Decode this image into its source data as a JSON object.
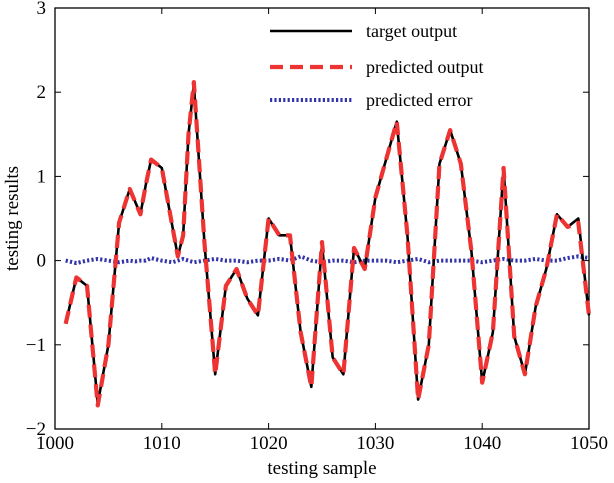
{
  "chart_data": {
    "type": "line",
    "title": "",
    "xlabel": "testing sample",
    "ylabel": "testing results",
    "xlim": [
      1000,
      1050
    ],
    "ylim": [
      -2,
      3
    ],
    "xticks": [
      1000,
      1010,
      1020,
      1030,
      1040,
      1050
    ],
    "yticks": [
      -2,
      -1,
      0,
      1,
      2,
      3
    ],
    "ytick_labels": [
      "−2",
      "−1",
      "0",
      "1",
      "2",
      "3"
    ],
    "grid": false,
    "legend_position": "top-right",
    "x": [
      1001,
      1002,
      1003,
      1004,
      1005,
      1006,
      1007,
      1007.5,
      1008,
      1008.5,
      1009,
      1010,
      1011,
      1011.5,
      1012,
      1012.5,
      1013,
      1014,
      1015,
      1016,
      1017,
      1018,
      1019,
      1020,
      1021,
      1022,
      1023,
      1024,
      1025,
      1026,
      1027,
      1028,
      1029,
      1030,
      1031,
      1032,
      1033,
      1034,
      1035,
      1036,
      1037,
      1038,
      1039,
      1040,
      1041,
      1042,
      1043,
      1044,
      1045,
      1046,
      1047,
      1048,
      1049,
      1050
    ],
    "series": [
      {
        "name": "target output",
        "color": "#000000",
        "style": "solid",
        "values": [
          -0.75,
          -0.2,
          -0.3,
          -1.7,
          -1.0,
          0.45,
          0.85,
          0.7,
          0.55,
          0.9,
          1.2,
          1.1,
          0.4,
          0.05,
          0.3,
          1.5,
          2.1,
          0.2,
          -1.35,
          -0.3,
          -0.1,
          -0.45,
          -0.65,
          0.5,
          0.3,
          0.3,
          -0.85,
          -1.5,
          0.2,
          -1.15,
          -1.35,
          0.15,
          -0.1,
          0.75,
          1.2,
          1.65,
          0.3,
          -1.65,
          -1.0,
          1.15,
          1.55,
          1.15,
          0.1,
          -1.45,
          -0.85,
          1.1,
          -0.9,
          -1.35,
          -0.55,
          -0.1,
          0.55,
          0.4,
          0.5,
          -0.65
        ]
      },
      {
        "name": "predicted output",
        "color": "#ee3333",
        "style": "dashed",
        "values": [
          -0.75,
          -0.2,
          -0.3,
          -1.72,
          -1.0,
          0.45,
          0.85,
          0.7,
          0.55,
          0.9,
          1.2,
          1.1,
          0.4,
          0.05,
          0.3,
          1.5,
          2.12,
          0.2,
          -1.35,
          -0.3,
          -0.1,
          -0.45,
          -0.65,
          0.5,
          0.3,
          0.3,
          -0.85,
          -1.5,
          0.22,
          -1.15,
          -1.35,
          0.15,
          -0.1,
          0.75,
          1.2,
          1.65,
          0.3,
          -1.65,
          -1.0,
          1.15,
          1.55,
          1.15,
          0.1,
          -1.45,
          -0.85,
          1.1,
          -0.9,
          -1.35,
          -0.55,
          -0.1,
          0.55,
          0.4,
          0.45,
          -0.65
        ]
      },
      {
        "name": "predicted error",
        "color": "#3333aa",
        "style": "dotted",
        "values": [
          0.0,
          -0.03,
          0.0,
          0.02,
          0.0,
          -0.02,
          0.0,
          -0.01,
          0.0,
          0.0,
          0.03,
          0.0,
          -0.02,
          0.0,
          0.02,
          0.0,
          -0.02,
          0.0,
          0.02,
          0.0,
          0.0,
          -0.02,
          0.0,
          0.0,
          0.02,
          0.0,
          0.05,
          0.0,
          -0.02,
          0.0,
          0.0,
          -0.02,
          0.0,
          0.0,
          0.0,
          -0.02,
          0.0,
          0.02,
          -0.02,
          0.0,
          0.0,
          0.0,
          0.0,
          -0.02,
          0.0,
          0.02,
          0.0,
          0.0,
          0.02,
          0.0,
          0.0,
          0.03,
          0.05,
          0.03
        ]
      }
    ]
  }
}
